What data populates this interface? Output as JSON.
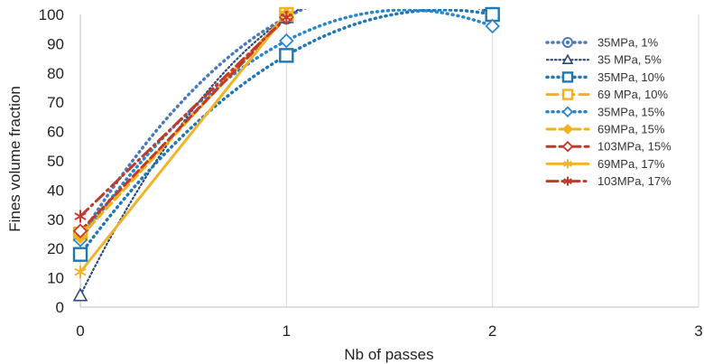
{
  "chart_data": {
    "type": "scatter",
    "xlabel": "Nb of passes",
    "ylabel": "Fines volume fraction",
    "xlim": [
      0,
      3
    ],
    "ylim": [
      0,
      100
    ],
    "x_ticks": [
      "0",
      "1",
      "2",
      "3"
    ],
    "y_ticks": [
      "0",
      "10",
      "20",
      "30",
      "40",
      "50",
      "60",
      "70",
      "80",
      "90",
      "100"
    ],
    "grid": "vertical",
    "legend_position": "right",
    "series": [
      {
        "name": "35MPa, 1%",
        "color": "#4a7ab8",
        "line": "round-dot",
        "marker": "circle-dot",
        "x": [
          0,
          1,
          2
        ],
        "y": [
          24,
          99,
          100
        ]
      },
      {
        "name": "35 MPa, 5%",
        "color": "#2e4a7a",
        "line": "dot",
        "marker": "triangle",
        "x": [
          0,
          1,
          2
        ],
        "y": [
          4,
          99,
          100
        ]
      },
      {
        "name": "35MPa, 10%",
        "color": "#1f77b4",
        "line": "round-dot",
        "marker": "square",
        "x": [
          0,
          1,
          2
        ],
        "y": [
          18,
          86,
          100
        ]
      },
      {
        "name": "69 MPa, 10%",
        "color": "#f2b01e",
        "line": "long-dash",
        "marker": "square",
        "x": [
          0,
          1
        ],
        "y": [
          25,
          100
        ]
      },
      {
        "name": "35MPa, 15%",
        "color": "#2a86c8",
        "line": "round-dot",
        "marker": "diamond",
        "x": [
          0,
          1,
          2
        ],
        "y": [
          23,
          91,
          96
        ]
      },
      {
        "name": "69MPa, 15%",
        "color": "#f2b01e",
        "line": "dash",
        "marker": "diamond-filled",
        "x": [
          0,
          1
        ],
        "y": [
          24,
          100
        ]
      },
      {
        "name": "103MPa, 15%",
        "color": "#c0392b",
        "line": "dash",
        "marker": "diamond",
        "x": [
          0,
          1
        ],
        "y": [
          26,
          99
        ]
      },
      {
        "name": "69MPa, 17%",
        "color": "#f0b429",
        "line": "solid",
        "marker": "asterisk",
        "x": [
          0,
          1
        ],
        "y": [
          12,
          100
        ]
      },
      {
        "name": "103MPa, 17%",
        "color": "#c0392b",
        "line": "dash-dot",
        "marker": "asterisk",
        "x": [
          0,
          1
        ],
        "y": [
          31,
          99
        ]
      }
    ]
  }
}
